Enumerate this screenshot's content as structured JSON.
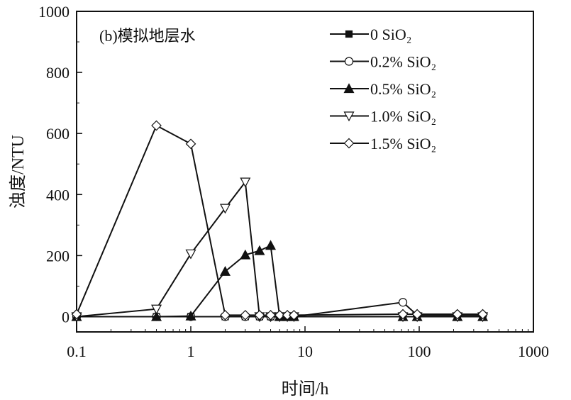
{
  "chart_data": {
    "type": "line",
    "annotation": "(b)模拟地层水",
    "xlabel": "时间/h",
    "ylabel": "浊度/NTU",
    "xscale": "log",
    "xlim": [
      0.1,
      1000
    ],
    "ylim": [
      -50,
      1000
    ],
    "xticks": [
      0.1,
      1,
      10,
      100,
      1000
    ],
    "xtick_labels": [
      "0.1",
      "1",
      "10",
      "100",
      "1000"
    ],
    "yticks": [
      0,
      200,
      400,
      600,
      800,
      1000
    ],
    "ytick_labels": [
      "0",
      "200",
      "400",
      "600",
      "800",
      "1000"
    ],
    "grid": false,
    "legend_position": "top-right",
    "x": [
      0.1,
      0.5,
      1,
      2,
      3,
      4,
      5,
      6,
      7,
      8,
      72,
      96,
      216,
      360
    ],
    "series": [
      {
        "name": "0 SiO₂",
        "marker": "square-filled",
        "values": [
          0,
          0,
          0,
          0,
          0,
          0,
          0,
          0,
          0,
          0,
          0,
          0,
          0,
          0
        ]
      },
      {
        "name": "0.2% SiO₂",
        "marker": "circle-open",
        "values": [
          0,
          0,
          0,
          0,
          0,
          0,
          0,
          0,
          0,
          0,
          47,
          5,
          5,
          5
        ]
      },
      {
        "name": "0.5% SiO₂",
        "marker": "triangle-up-filled",
        "values": [
          0,
          0,
          2,
          148,
          202,
          216,
          233,
          0,
          0,
          0,
          0,
          0,
          0,
          0
        ]
      },
      {
        "name": "1.0% SiO₂",
        "marker": "triangle-down-open",
        "values": [
          0,
          25,
          206,
          355,
          441,
          0,
          0,
          0,
          0,
          0,
          0,
          0,
          0,
          0
        ]
      },
      {
        "name": "1.5% SiO₂",
        "marker": "diamond-open",
        "values": [
          8,
          626,
          566,
          5,
          5,
          5,
          5,
          5,
          5,
          5,
          8,
          8,
          8,
          8
        ]
      }
    ],
    "colors": {
      "line": "#111111",
      "marker_fill_open": "#ffffff",
      "marker_fill_filled": "#111111"
    }
  }
}
